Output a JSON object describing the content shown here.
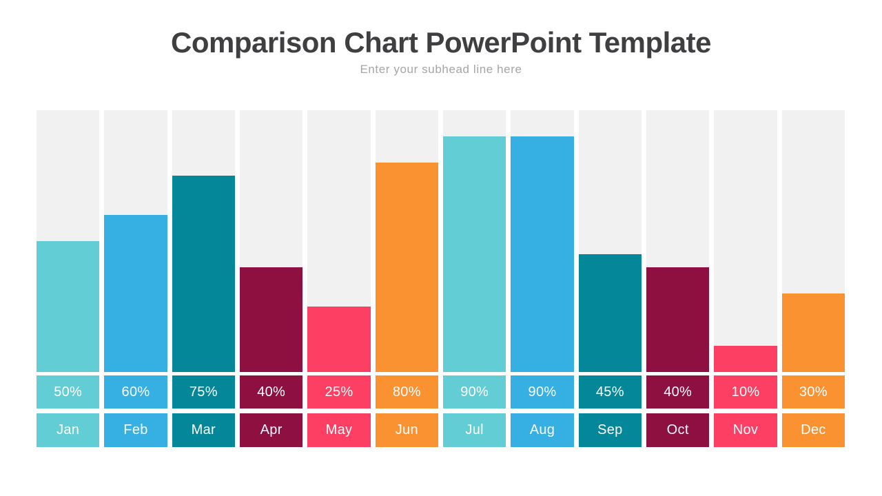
{
  "header": {
    "title": "Comparison Chart PowerPoint Template",
    "subtitle": "Enter your subhead line here"
  },
  "theme": {
    "background": "#ffffff",
    "title_color": "#3f3e41",
    "subtitle_color": "#a5a4a6",
    "track_color": "#f1f1f2",
    "label_text_color": "#ffffff"
  },
  "chart_data": {
    "type": "bar",
    "title": "Comparison Chart PowerPoint Template",
    "subtitle": "Enter your subhead line here",
    "categories": [
      "Jan",
      "Feb",
      "Mar",
      "Apr",
      "May",
      "Jun",
      "Jul",
      "Aug",
      "Sep",
      "Oct",
      "Nov",
      "Dec"
    ],
    "values": [
      50,
      60,
      75,
      40,
      25,
      80,
      90,
      90,
      45,
      40,
      10,
      30
    ],
    "value_labels": [
      "50%",
      "60%",
      "75%",
      "40%",
      "25%",
      "80%",
      "90%",
      "90%",
      "45%",
      "40%",
      "10%",
      "30%"
    ],
    "palette": [
      "#63cdd5",
      "#36afe2",
      "#048899",
      "#8e1040",
      "#fc3f62",
      "#fa9231"
    ],
    "bar_colors": [
      "#63cdd5",
      "#36afe2",
      "#048899",
      "#8e1040",
      "#fc3f62",
      "#fa9231",
      "#63cdd5",
      "#36afe2",
      "#048899",
      "#8e1040",
      "#fc3f62",
      "#fa9231"
    ],
    "track_color": "#f1f1f2",
    "ylim": [
      0,
      100
    ],
    "grid": false,
    "legend": false,
    "orientation": "vertical"
  }
}
